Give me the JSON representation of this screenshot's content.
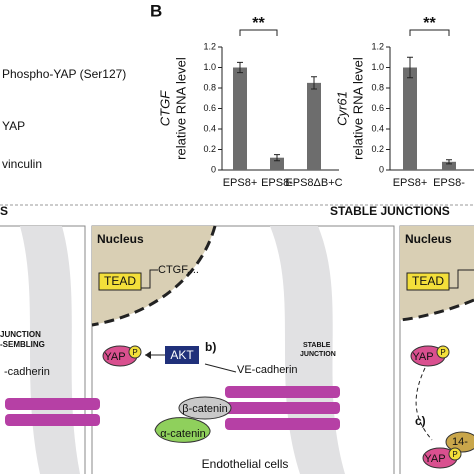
{
  "panel_letter": "B",
  "blot_labels": [
    "Phospho-YAP (Ser127)",
    "YAP",
    "vinculin"
  ],
  "chart_data": [
    {
      "type": "bar",
      "ylabel_gene": "CTGF",
      "ylabel": "relative RNA level",
      "categories": [
        "EPS8+",
        "EPS8-",
        "EPS8ΔB+C"
      ],
      "values": [
        1.0,
        0.12,
        0.85
      ],
      "errors": [
        0.05,
        0.03,
        0.06
      ],
      "color": "#6d6d6d",
      "ylim": [
        0,
        1.2
      ],
      "yticks": [
        0,
        0.2,
        0.4,
        0.6,
        0.8,
        {
          "value": 1,
          "label": "1.0"
        },
        1.2
      ],
      "annotation": "**"
    },
    {
      "type": "bar",
      "ylabel_gene": "Cyr61",
      "ylabel": "relative RNA level",
      "categories": [
        "EPS8+",
        "EPS8-"
      ],
      "values": [
        1.0,
        0.08
      ],
      "errors": [
        0.1,
        0.02
      ],
      "color": "#6d6d6d",
      "ylim": [
        0,
        1.2
      ],
      "yticks": [
        0,
        0.2,
        0.4,
        0.6,
        0.8,
        {
          "value": 1,
          "label": "1.0"
        },
        1.2
      ],
      "annotation": "**"
    }
  ],
  "diagram": {
    "left_header": "S",
    "center_header": "STABLE JUNCTIONS",
    "left": {
      "junction": [
        "JUNCTION",
        "-SEMBLING"
      ],
      "cadherin": "-cadherin"
    },
    "center": {
      "nucleus": "Nucleus",
      "tead": "TEAD",
      "target": "CTGF,...",
      "yap": "YAP",
      "p": "P",
      "akt": "AKT",
      "step": "b)",
      "cadherin": "VE-cadherin",
      "junction": [
        "STABLE",
        "JUNCTION"
      ],
      "beta": "β-catenin",
      "alpha": "α-catenin",
      "caption": "Endothelial cells"
    },
    "right": {
      "nucleus": "Nucleus",
      "tead": "TEAD",
      "yap": "YAP",
      "p": "P",
      "step": "c)",
      "protein": "14-",
      "yap2": "YAP",
      "p2": "P"
    }
  }
}
